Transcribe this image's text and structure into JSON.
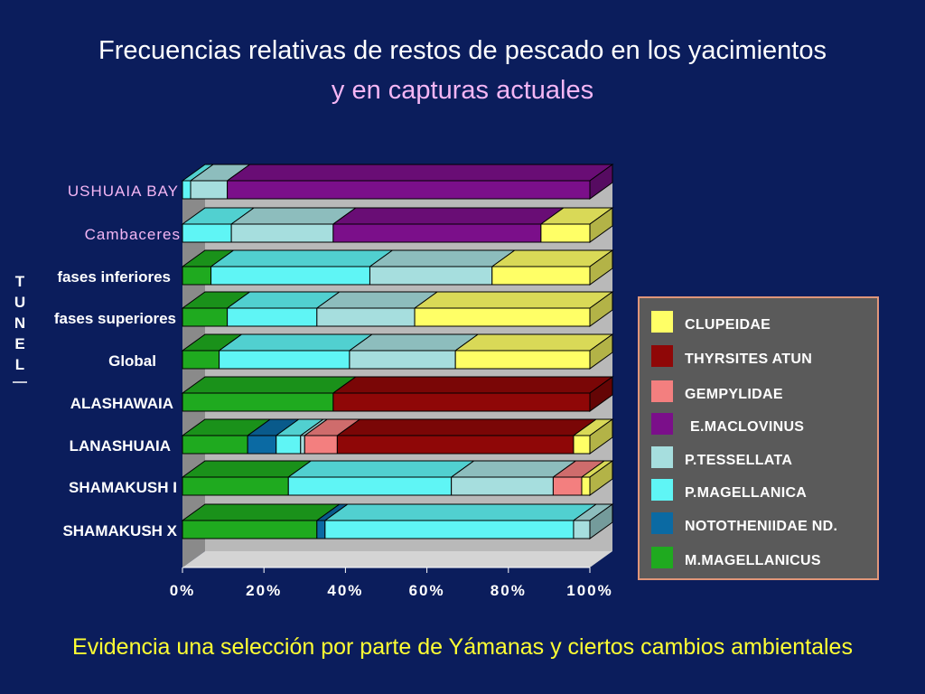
{
  "title_line1": "Frecuencias relativas de restos de pescado en los yacimientos",
  "title_line2": "y en capturas actuales",
  "footer": "Evidencia una selección por parte de Yámanas y ciertos cambios ambientales",
  "group_label": [
    "T",
    "U",
    "N",
    "E",
    "L"
  ],
  "colors": {
    "background": "#0b1d5c",
    "title_secondary": "#f4b6f4",
    "footer": "#ffff33",
    "label_pink": "#f4b6f4",
    "label_white": "#ffffff"
  },
  "chart_data": {
    "type": "bar",
    "orientation": "horizontal",
    "stacked": "percent",
    "three_d": true,
    "xlim": [
      0,
      100
    ],
    "x_ticks": [
      "0%",
      "20%",
      "40%",
      "60%",
      "80%",
      "100%"
    ],
    "grid": false,
    "legend_position": "right",
    "categories": [
      "SHAMAKUSH X",
      "SHAMAKUSH I",
      "LANASHUAIA",
      "ALASHAWAIA",
      "Global",
      "fases superiores",
      "fases inferiores",
      "Cambaceres",
      "USHUAIA BAY"
    ],
    "category_label_colors": [
      "#ffffff",
      "#ffffff",
      "#ffffff",
      "#ffffff",
      "#ffffff",
      "#ffffff",
      "#ffffff",
      "#f4b6f4",
      "#f4b6f4"
    ],
    "series": [
      {
        "name": "M.MAGELLANICUS",
        "color": "#1faa1f",
        "values": [
          33,
          26,
          16,
          37,
          9,
          11,
          7,
          0,
          0
        ]
      },
      {
        "name": "NOTOTHENIIDAE ND.",
        "color": "#0b6aa3",
        "values": [
          2,
          0,
          7,
          0,
          0,
          0,
          0,
          0,
          0
        ]
      },
      {
        "name": "P.MAGELLANICA",
        "color": "#5ff5f5",
        "values": [
          61,
          40,
          6,
          0,
          32,
          22,
          39,
          12,
          2
        ]
      },
      {
        "name": "P.TESSELLATA",
        "color": "#a6dede",
        "values": [
          4,
          25,
          1,
          0,
          26,
          24,
          30,
          25,
          9
        ]
      },
      {
        "name": "E.MACLOVINUS",
        "color": "#7b0f8a",
        "values": [
          0,
          0,
          0,
          0,
          0,
          0,
          0,
          51,
          89
        ]
      },
      {
        "name": "GEMPYLIDAE",
        "color": "#f37f7f",
        "values": [
          0,
          7,
          8,
          0,
          0,
          0,
          0,
          0,
          0
        ]
      },
      {
        "name": "THYRSITES ATUN",
        "color": "#8f0707",
        "values": [
          0,
          0,
          58,
          63,
          0,
          0,
          0,
          0,
          0
        ]
      },
      {
        "name": "CLUPEIDAE",
        "color": "#ffff66",
        "values": [
          0,
          2,
          4,
          0,
          33,
          43,
          24,
          12,
          0
        ]
      }
    ],
    "legend_order": [
      "CLUPEIDAE",
      "THYRSITES ATUN",
      "GEMPYLIDAE",
      "E.MACLOVINUS",
      "P.TESSELLATA",
      "P.MAGELLANICA",
      "NOTOTHENIIDAE ND.",
      "M.MAGELLANICUS"
    ]
  }
}
